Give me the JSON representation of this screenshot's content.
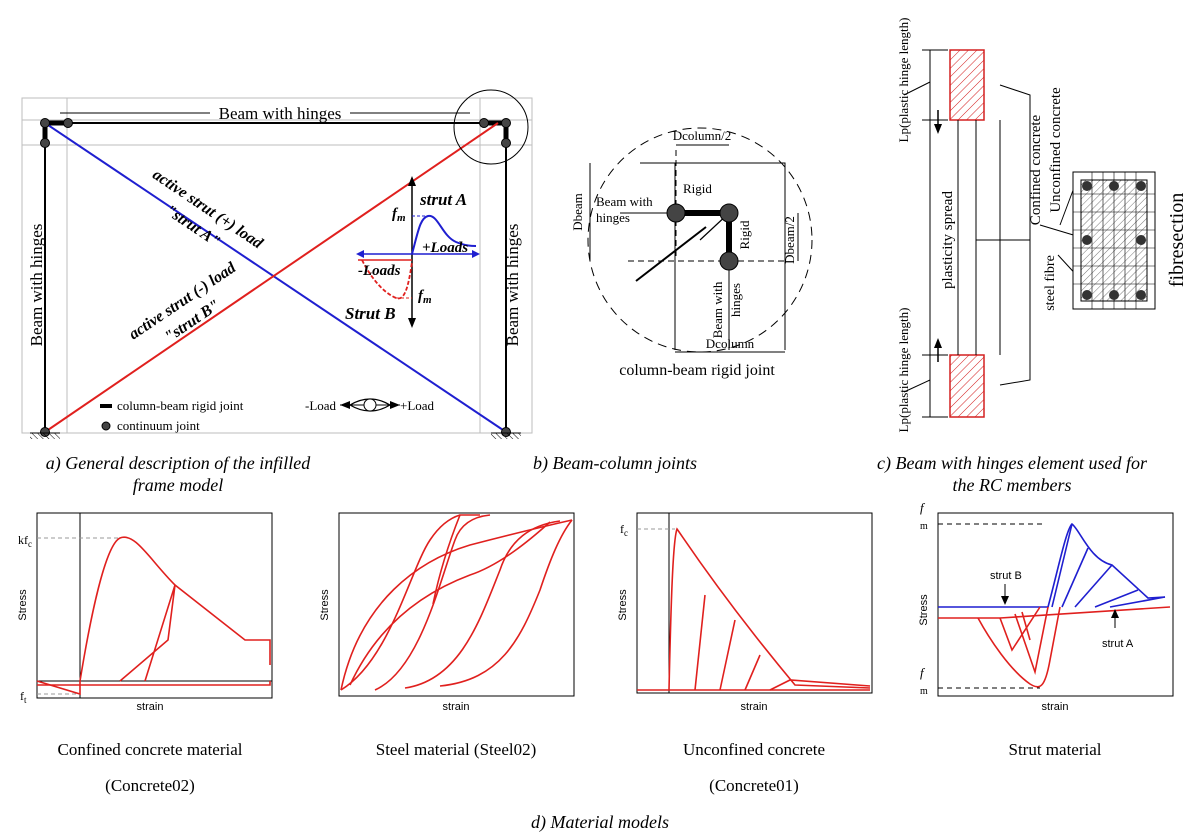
{
  "panel_a": {
    "beam_top_label": "Beam with hinges",
    "beam_left_label": "Beam with hinges",
    "beam_right_label": "Beam with hinges",
    "strut_a_label_1": "active strut (+) load",
    "strut_a_label_2": "\"strut A\"",
    "strut_b_label_1": "active strut (-) load",
    "strut_b_label_2": "\"strut B\"",
    "inset_strut_a": "strut A",
    "inset_strut_b": "Strut B",
    "inset_fm_top": "f",
    "inset_fm_top_sub": "m",
    "inset_fm_bottom": "f",
    "inset_fm_bottom_sub": "m",
    "inset_plus_loads": "+Loads",
    "inset_minus_loads": "-Loads",
    "legend_rigid": "column-beam rigid joint",
    "legend_continuum": "continuum joint",
    "legend_minus_load": "-Load",
    "legend_plus_load": "+Load",
    "caption_1": "a) General description of the infilled",
    "caption_2": "frame model"
  },
  "panel_b": {
    "dcolumn_half": "Dcolumn/2",
    "dbeam": "Dbeam",
    "rigid_top": "Rigid",
    "rigid_right": "Rigid",
    "beam_hinges_1": "Beam with",
    "beam_hinges_2": "hinges",
    "dbeam_half": "Dbeam/2",
    "beam_hinges_v1": "Beam with",
    "beam_hinges_v2": "hinges",
    "dcolumn": "Dcolumn",
    "joint_label": "column-beam rigid joint",
    "caption": "b) Beam-column joints"
  },
  "panel_c": {
    "lp_top": "Lp(plastic hinge length)",
    "lp_bottom": "Lp(plastic hinge length)",
    "plasticity": "plasticity spread",
    "confined": "Confined concrete",
    "unconfined": "Unconfined concrete",
    "steel_fibre": "steel fibre",
    "fibresection": "fibresection",
    "caption_1": "c) Beam with hinges element used for",
    "caption_2": "the RC members"
  },
  "panel_d": {
    "caption": "d) Material models",
    "models": [
      {
        "title_1": "Confined concrete material",
        "title_2": "(Concrete02)",
        "xlabel": "strain",
        "ylabel": "Stress",
        "top_tick": "kf",
        "top_tick_sub": "c",
        "bottom_tick": "f",
        "bottom_tick_sub": "t"
      },
      {
        "title_1": "Steel material (Steel02)",
        "title_2": "",
        "xlabel": "strain",
        "ylabel": "Stress"
      },
      {
        "title_1": "Unconfined concrete",
        "title_2": "(Concrete01)",
        "xlabel": "strain",
        "ylabel": "Stress",
        "top_tick": "f",
        "top_tick_sub": "c"
      },
      {
        "title_1": "Strut material",
        "title_2": "",
        "xlabel": "strain",
        "ylabel": "Stress",
        "top_tick": "f",
        "top_tick_sub": "m",
        "bottom_tick": "f",
        "bottom_tick_sub": "m",
        "strut_b": "strut B",
        "strut_a": "strut A"
      }
    ]
  },
  "colors": {
    "strut_a": "#1f1fd0",
    "strut_b": "#e0201e",
    "hatch": "#d42020",
    "dash_grey": "#999999"
  }
}
